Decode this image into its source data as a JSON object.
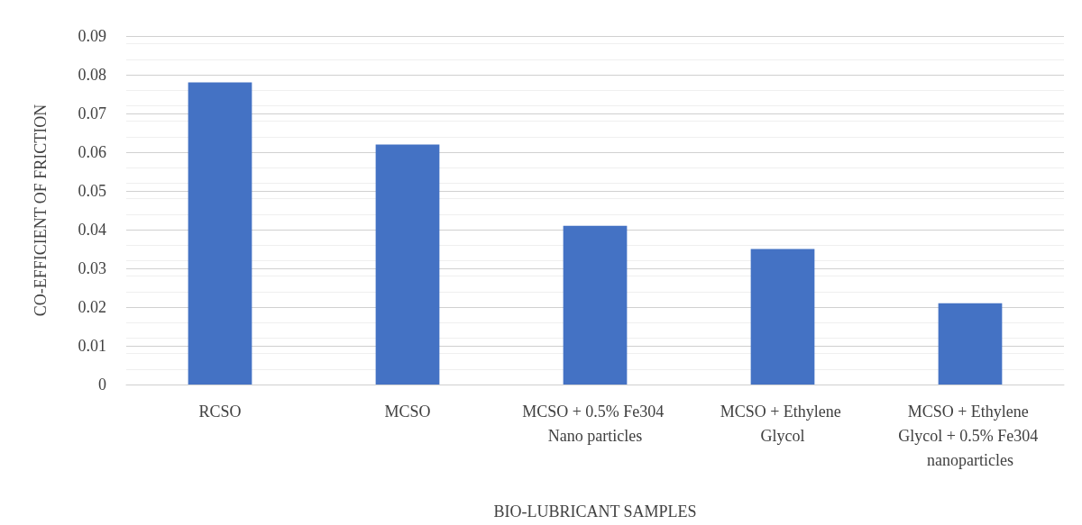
{
  "chart_data": {
    "type": "bar",
    "xlabel": "BIO-LUBRICANT SAMPLES",
    "ylabel": "CO-EFFICIENT OF FRICTION",
    "categories": [
      "RCSO",
      "MCSO",
      "MCSO + 0.5% Fe304 Nano particles",
      "MCSO + Ethylene Glycol",
      "MCSO + Ethylene Glycol + 0.5% Fe304 nanoparticles"
    ],
    "values": [
      0.078,
      0.062,
      0.041,
      0.035,
      0.021
    ],
    "color": "#4472c4",
    "ylim": [
      0,
      0.09
    ],
    "yticks": [
      0,
      0.01,
      0.02,
      0.03,
      0.04,
      0.05,
      0.06,
      0.07,
      0.08,
      0.09
    ],
    "grid": "y"
  }
}
